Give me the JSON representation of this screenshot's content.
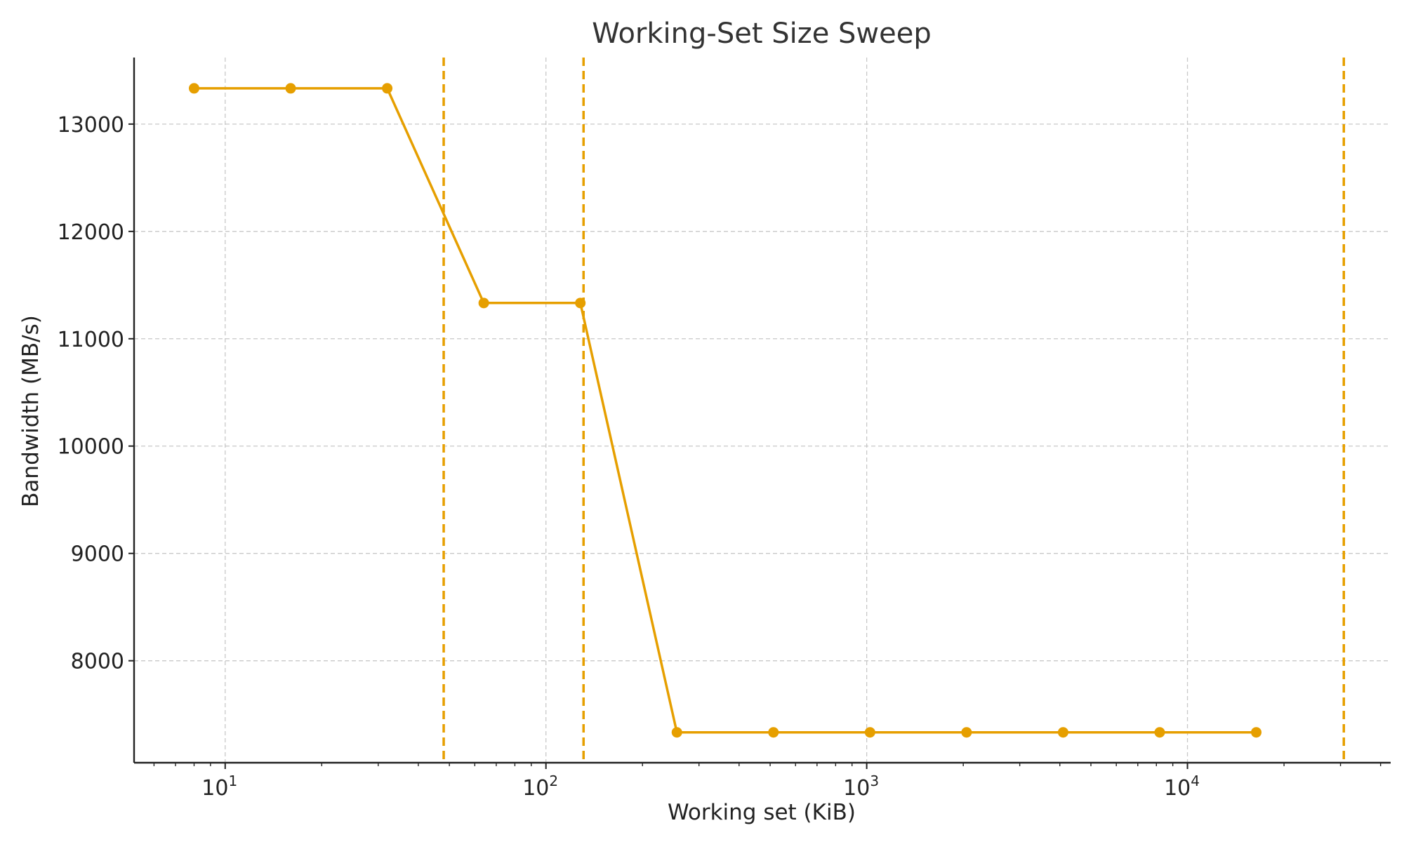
{
  "chart_data": {
    "type": "line",
    "title": "Working-Set Size Sweep",
    "xlabel": "Working set (KiB)",
    "ylabel": "Bandwidth (MB/s)",
    "x_scale": "log",
    "xlim": [
      5.2,
      43000
    ],
    "ylim": [
      7050,
      13620
    ],
    "grid": true,
    "color": "#E69F00",
    "x_tick_labels": [
      {
        "base": "10",
        "exp": "1",
        "value": 10
      },
      {
        "base": "10",
        "exp": "2",
        "value": 100
      },
      {
        "base": "10",
        "exp": "3",
        "value": 1000
      },
      {
        "base": "10",
        "exp": "4",
        "value": 10000
      }
    ],
    "y_ticks": [
      8000,
      9000,
      10000,
      11000,
      12000,
      13000
    ],
    "series": [
      {
        "x": [
          8,
          16,
          32,
          64,
          128,
          256,
          512,
          1024,
          2048,
          4096,
          8192,
          16384
        ],
        "values": [
          13333,
          13333,
          13333,
          11333,
          11333,
          7333,
          7333,
          7333,
          7333,
          7333,
          7333,
          7333
        ]
      }
    ],
    "vertical_markers": [
      48,
      131,
      30720
    ]
  }
}
